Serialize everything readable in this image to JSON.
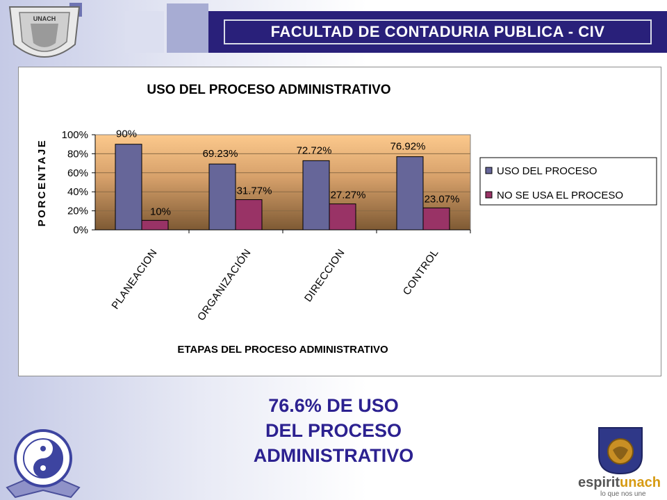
{
  "header": {
    "title": "FACULTAD DE CONTADURIA PUBLICA - CIV"
  },
  "logos": {
    "top_left": "UNACH UNIVERSIDAD AUTONOMA DE CHIAPAS",
    "top_left_icon": "university-seal-icon",
    "bottom_left_icon": "yin-yang-emblem-icon",
    "bottom_right_icon": "espiritu-unach-shield-icon",
    "bottom_right_brand_a": "espirit",
    "bottom_right_brand_b": "unach",
    "bottom_right_slogan": "lo que nos une"
  },
  "chart_data": {
    "type": "bar",
    "title": "USO DEL PROCESO ADMINISTRATIVO",
    "xlabel": "ETAPAS DEL PROCESO ADMINISTRATIVO",
    "ylabel": "PORCENTAJE",
    "categories": [
      "PLANEACION",
      "ORGANIZACIÓN",
      "DIRECCION",
      "CONTROL"
    ],
    "series": [
      {
        "name": "USO DEL PROCESO",
        "values": [
          90,
          69.23,
          72.72,
          76.92
        ],
        "labels": [
          "90%",
          "69.23%",
          "72.72%",
          "76.92%"
        ],
        "color": "#666699"
      },
      {
        "name": "NO SE USA EL PROCESO",
        "values": [
          10,
          31.77,
          27.27,
          23.07
        ],
        "labels": [
          "10%",
          "31.77%",
          "27.27%",
          "23.07%"
        ],
        "color": "#993366"
      }
    ],
    "ylim": [
      0,
      100
    ],
    "yticks": [
      "0%",
      "20%",
      "40%",
      "60%",
      "80%",
      "100%"
    ],
    "legend_position": "right",
    "plot_background": "gradient-orange-brown",
    "grid": true
  },
  "caption": {
    "line1": "76.6% DE USO",
    "line2": "DEL PROCESO",
    "line3": "ADMINISTRATIVO"
  },
  "colors": {
    "header_band": "#29207a",
    "caption_text": "#2c2190"
  }
}
